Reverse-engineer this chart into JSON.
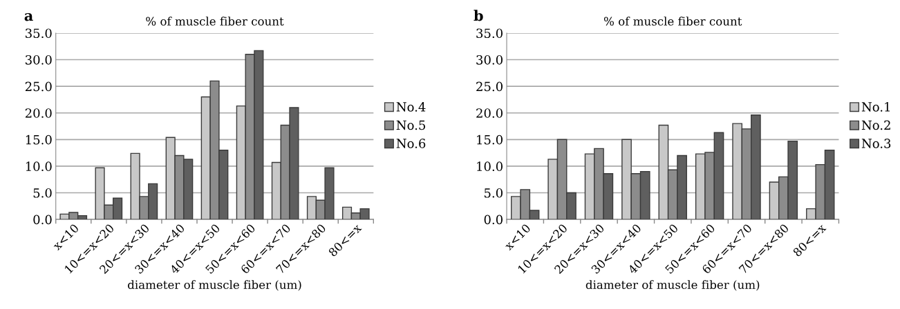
{
  "chart_data": [
    {
      "type": "bar",
      "title": "% of muscle fiber count",
      "xlabel": "diameter of muscle fiber (um)",
      "annotations": [
        "a"
      ],
      "categories": [
        "x<10",
        "10<=x<20",
        "20<=x<30",
        "30<=x<40",
        "40<=x<50",
        "50<=x<60",
        "60<=x<70",
        "70<=x<80",
        "80<=x"
      ],
      "series": [
        {
          "name": "No.4",
          "color": "#c8c8c8",
          "values": [
            1.0,
            9.7,
            12.4,
            15.4,
            23.0,
            21.3,
            10.7,
            4.3,
            2.3
          ]
        },
        {
          "name": "No.5",
          "color": "#8c8c8c",
          "values": [
            1.3,
            2.7,
            4.3,
            12.0,
            26.0,
            31.0,
            17.7,
            3.6,
            1.2
          ]
        },
        {
          "name": "No.6",
          "color": "#5f5f5f",
          "values": [
            0.7,
            4.0,
            6.7,
            11.3,
            13.0,
            31.7,
            21.0,
            9.7,
            2.0
          ]
        }
      ],
      "ylim": [
        0,
        35
      ],
      "yticks": [
        {
          "value": 0,
          "label": "0.0"
        },
        {
          "value": 5,
          "label": "5.0"
        },
        {
          "value": 10,
          "label": "10.0"
        },
        {
          "value": 15,
          "label": "15.0"
        },
        {
          "value": 20,
          "label": "20.0"
        },
        {
          "value": 25,
          "label": "25.0"
        },
        {
          "value": 30,
          "label": "30.0"
        },
        {
          "value": 35,
          "label": "35.0"
        }
      ],
      "grid": "y",
      "legend": "right"
    },
    {
      "type": "bar",
      "title": "% of muscle fiber count",
      "xlabel": "diameter of muscle fiber (um)",
      "annotations": [
        "b"
      ],
      "categories": [
        "x<10",
        "10<=x<20",
        "20<=x<30",
        "30<=x<40",
        "40<=x<50",
        "50<=x<60",
        "60<=x<70",
        "70<=x<80",
        "80<=x"
      ],
      "series": [
        {
          "name": "No.1",
          "color": "#c8c8c8",
          "values": [
            4.3,
            11.3,
            12.3,
            15.0,
            17.7,
            12.3,
            18.0,
            7.0,
            2.0
          ]
        },
        {
          "name": "No.2",
          "color": "#8c8c8c",
          "values": [
            5.6,
            15.0,
            13.3,
            8.6,
            9.3,
            12.6,
            17.0,
            8.0,
            10.3
          ]
        },
        {
          "name": "No.3",
          "color": "#5f5f5f",
          "values": [
            1.7,
            5.0,
            8.6,
            9.0,
            12.0,
            16.3,
            19.6,
            14.7,
            13.0
          ]
        }
      ],
      "ylim": [
        0,
        35
      ],
      "yticks": [
        {
          "value": 0,
          "label": "0.0"
        },
        {
          "value": 5,
          "label": "5.0"
        },
        {
          "value": 10,
          "label": "10.0"
        },
        {
          "value": 15,
          "label": "15.0"
        },
        {
          "value": 20,
          "label": "20.0"
        },
        {
          "value": 25,
          "label": "25.0"
        },
        {
          "value": 30,
          "label": "30.0"
        },
        {
          "value": 35,
          "label": "35.0"
        }
      ],
      "grid": "y",
      "legend": "right"
    }
  ]
}
